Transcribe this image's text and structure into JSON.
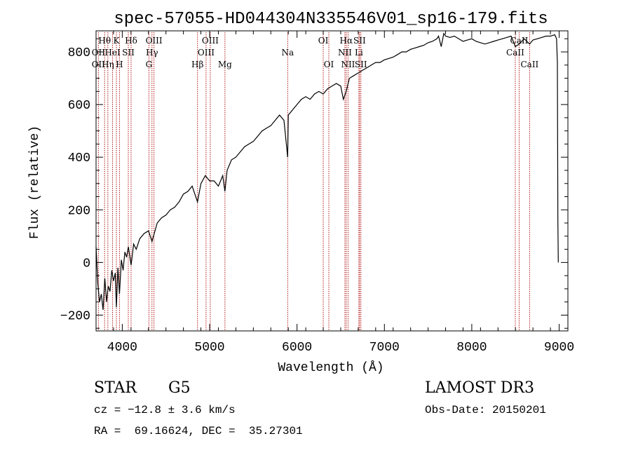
{
  "chart_data": {
    "type": "line",
    "title": "spec-57055-HD044304N335546V01_sp16-179.fits",
    "xlabel": "Wavelength (Å)",
    "ylabel": "Flux (relative)",
    "xlim": [
      3700,
      9100
    ],
    "ylim": [
      -260,
      880
    ],
    "x_ticks": [
      4000,
      5000,
      6000,
      7000,
      8000,
      9000
    ],
    "y_ticks": [
      -200,
      0,
      200,
      400,
      600,
      800
    ],
    "grid": false,
    "series": [
      {
        "x": [
          3700,
          3720,
          3740,
          3760,
          3780,
          3800,
          3820,
          3840,
          3860,
          3880,
          3900,
          3920,
          3933,
          3950,
          3968,
          3990,
          4010,
          4030,
          4050,
          4070,
          4101,
          4130,
          4160,
          4200,
          4250,
          4300,
          4340,
          4400,
          4450,
          4500,
          4550,
          4600,
          4650,
          4700,
          4750,
          4800,
          4861,
          4900,
          4950,
          5000,
          5050,
          5100,
          5150,
          5175,
          5200,
          5250,
          5300,
          5350,
          5400,
          5450,
          5500,
          5550,
          5600,
          5650,
          5700,
          5750,
          5800,
          5850,
          5893,
          5900,
          5950,
          6000,
          6050,
          6100,
          6150,
          6200,
          6250,
          6300,
          6350,
          6400,
          6450,
          6500,
          6530,
          6563,
          6600,
          6650,
          6700,
          6750,
          6800,
          6850,
          6900,
          6950,
          7000,
          7050,
          7100,
          7150,
          7200,
          7250,
          7300,
          7350,
          7400,
          7450,
          7500,
          7550,
          7600,
          7620,
          7650,
          7680,
          7700,
          7750,
          7800,
          7850,
          7900,
          7950,
          8000,
          8050,
          8100,
          8150,
          8200,
          8250,
          8300,
          8350,
          8400,
          8450,
          8498,
          8542,
          8600,
          8662,
          8700,
          8750,
          8800,
          8850,
          8900,
          8950,
          8970,
          8980,
          8985,
          8990
        ],
        "values": [
          60,
          -80,
          -150,
          -120,
          -180,
          -60,
          -150,
          -90,
          -110,
          -30,
          -70,
          -40,
          -170,
          -20,
          -120,
          10,
          -30,
          40,
          20,
          60,
          -10,
          70,
          50,
          90,
          110,
          120,
          80,
          150,
          170,
          180,
          200,
          210,
          230,
          260,
          270,
          290,
          230,
          300,
          330,
          310,
          310,
          290,
          330,
          270,
          350,
          390,
          400,
          420,
          440,
          450,
          460,
          480,
          500,
          510,
          520,
          540,
          560,
          540,
          400,
          560,
          580,
          600,
          620,
          630,
          620,
          640,
          650,
          640,
          660,
          670,
          680,
          670,
          620,
          650,
          700,
          710,
          720,
          730,
          740,
          750,
          760,
          760,
          770,
          775,
          780,
          790,
          800,
          800,
          810,
          815,
          820,
          825,
          835,
          840,
          850,
          860,
          820,
          870,
          860,
          855,
          860,
          850,
          840,
          845,
          850,
          840,
          835,
          830,
          835,
          840,
          845,
          850,
          855,
          860,
          820,
          830,
          850,
          830,
          845,
          850,
          855,
          860,
          860,
          865,
          850,
          760,
          160,
          0
        ]
      }
    ],
    "lines": [
      {
        "label": "Hθ",
        "x": 3798,
        "row": 1
      },
      {
        "label": "OII",
        "x": 3727,
        "row": 2
      },
      {
        "label": "OII",
        "x": 3727,
        "row": 3
      },
      {
        "label": "Hη",
        "x": 3835,
        "row": 3
      },
      {
        "label": "HeI",
        "x": 3889,
        "row": 2
      },
      {
        "label": "K",
        "x": 3933,
        "row": 1
      },
      {
        "label": "H",
        "x": 3968,
        "row": 3
      },
      {
        "label": "SII",
        "x": 4069,
        "row": 2
      },
      {
        "label": "Hδ",
        "x": 4101,
        "row": 1
      },
      {
        "label": "OIII",
        "x": 4363,
        "row": 1
      },
      {
        "label": "Hγ",
        "x": 4340,
        "row": 2
      },
      {
        "label": "G",
        "x": 4305,
        "row": 3
      },
      {
        "label": "Hβ",
        "x": 4861,
        "row": 3
      },
      {
        "label": "OIII",
        "x": 5007,
        "row": 1
      },
      {
        "label": "OIII",
        "x": 4959,
        "row": 2
      },
      {
        "label": "Mg",
        "x": 5175,
        "row": 3
      },
      {
        "label": "Na",
        "x": 5893,
        "row": 2
      },
      {
        "label": "OI",
        "x": 6300,
        "row": 1
      },
      {
        "label": "OI",
        "x": 6364,
        "row": 3
      },
      {
        "label": "Hα",
        "x": 6563,
        "row": 1
      },
      {
        "label": "NII",
        "x": 6548,
        "row": 2
      },
      {
        "label": "NII",
        "x": 6584,
        "row": 3
      },
      {
        "label": "SII",
        "x": 6716,
        "row": 1
      },
      {
        "label": "Li",
        "x": 6708,
        "row": 2
      },
      {
        "label": "SII",
        "x": 6731,
        "row": 3
      },
      {
        "label": "CaII",
        "x": 8542,
        "row": 1
      },
      {
        "label": "CaII",
        "x": 8498,
        "row": 2
      },
      {
        "label": "CaII",
        "x": 8662,
        "row": 3
      }
    ],
    "annotations": {
      "class": "STAR",
      "subclass": "G5",
      "survey": "LAMOST DR3",
      "cz": "cz = −12.8 ± 3.6 km/s",
      "obs_date": "Obs-Date: 20150201",
      "coords": "RA =  69.16624, DEC =  35.27301"
    },
    "colors": {
      "spectrum": "#000000",
      "line_markers": "#b01818",
      "axes": "#000000"
    }
  }
}
